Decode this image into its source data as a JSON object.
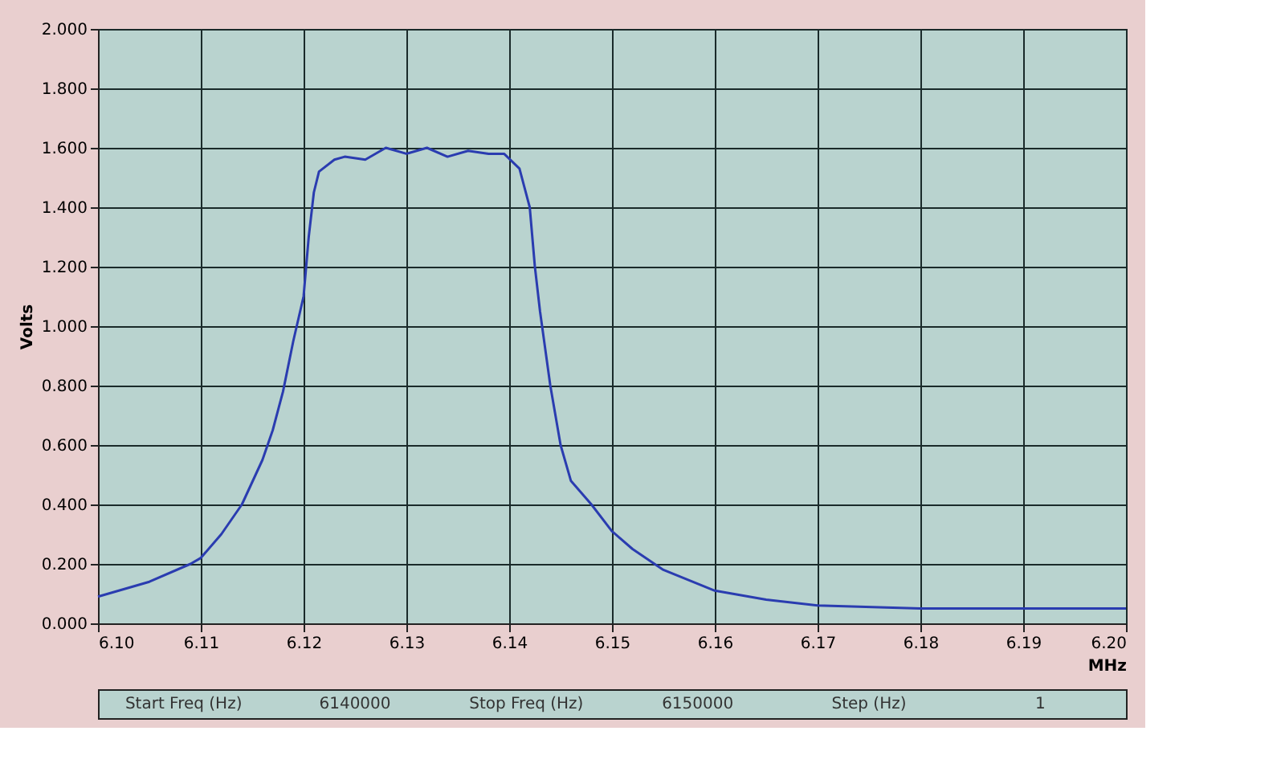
{
  "chart_data": {
    "type": "line",
    "xlabel": "MHz",
    "ylabel": "Volts",
    "x": [
      6.1,
      6.105,
      6.109,
      6.11,
      6.112,
      6.114,
      6.116,
      6.117,
      6.118,
      6.119,
      6.12,
      6.1205,
      6.121,
      6.1215,
      6.123,
      6.124,
      6.126,
      6.128,
      6.13,
      6.132,
      6.134,
      6.136,
      6.138,
      6.1395,
      6.141,
      6.142,
      6.1425,
      6.143,
      6.144,
      6.145,
      6.146,
      6.148,
      6.15,
      6.152,
      6.155,
      6.16,
      6.165,
      6.17,
      6.18,
      6.19,
      6.2
    ],
    "series": [
      {
        "color": "#2a3cb0",
        "values": [
          0.09,
          0.14,
          0.2,
          0.22,
          0.3,
          0.4,
          0.55,
          0.65,
          0.78,
          0.95,
          1.1,
          1.3,
          1.45,
          1.52,
          1.56,
          1.57,
          1.56,
          1.6,
          1.58,
          1.6,
          1.57,
          1.59,
          1.58,
          1.58,
          1.53,
          1.4,
          1.2,
          1.05,
          0.8,
          0.6,
          0.48,
          0.4,
          0.31,
          0.25,
          0.18,
          0.11,
          0.08,
          0.06,
          0.05,
          0.05,
          0.05
        ]
      }
    ],
    "xlim": [
      6.1,
      6.2
    ],
    "ylim": [
      0,
      2.0
    ],
    "xticks": [
      {
        "value": 6.1,
        "label": "6.10"
      },
      {
        "value": 6.11,
        "label": "6.11"
      },
      {
        "value": 6.12,
        "label": "6.12"
      },
      {
        "value": 6.13,
        "label": "6.13"
      },
      {
        "value": 6.14,
        "label": "6.14"
      },
      {
        "value": 6.15,
        "label": "6.15"
      },
      {
        "value": 6.16,
        "label": "6.16"
      },
      {
        "value": 6.17,
        "label": "6.17"
      },
      {
        "value": 6.18,
        "label": "6.18"
      },
      {
        "value": 6.19,
        "label": "6.19"
      },
      {
        "value": 6.2,
        "label": "6.20"
      }
    ],
    "yticks": [
      {
        "value": 0,
        "label": "0.000"
      },
      {
        "value": 0.2,
        "label": "0.200"
      },
      {
        "value": 0.4,
        "label": "0.400"
      },
      {
        "value": 0.6,
        "label": "0.600"
      },
      {
        "value": 0.8,
        "label": "0.800"
      },
      {
        "value": 1.0,
        "label": "1.000"
      },
      {
        "value": 1.2,
        "label": "1.200"
      },
      {
        "value": 1.4,
        "label": "1.400"
      },
      {
        "value": 1.6,
        "label": "1.600"
      },
      {
        "value": 1.8,
        "label": "1.800"
      },
      {
        "value": 2.0,
        "label": "2.000"
      }
    ],
    "grid": true,
    "marker": "none",
    "line_style": "solid",
    "annotations": [
      "Start Freq (Hz)",
      "6140000",
      "Stop Freq (Hz)",
      "6150000",
      "Step (Hz)",
      "1"
    ]
  }
}
